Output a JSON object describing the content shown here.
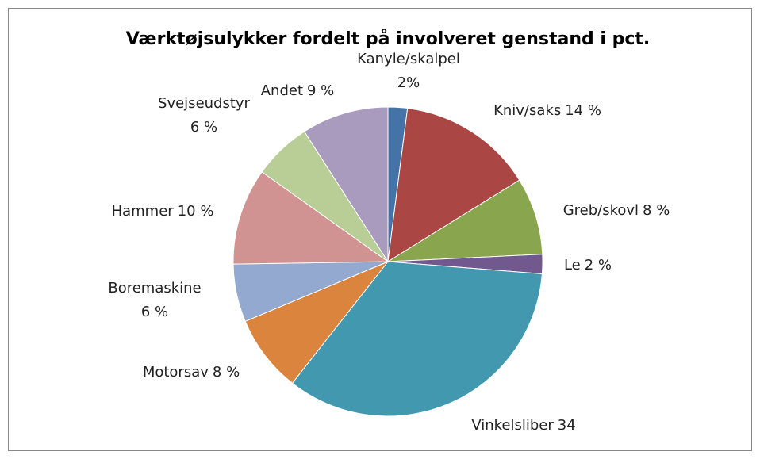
{
  "chart_data": {
    "type": "pie",
    "title": "Værktøjsulykker fordelt på involveret genstand i pct.",
    "categories": [
      "Kanyle/skalpel",
      "Kniv/saks",
      "Greb/skovl",
      "Le",
      "Vinkelsliber",
      "Motorsav",
      "Boremaskine",
      "Hammer",
      "Svejseudstyr",
      "Andet"
    ],
    "values": [
      2,
      14,
      8,
      2,
      34,
      8,
      6,
      10,
      6,
      9
    ],
    "value_labels": [
      "2%",
      "14 %",
      "8 %",
      "2 %",
      "34",
      "8 %",
      "6 %",
      "10 %",
      "6 %",
      "9 %"
    ],
    "colors": [
      "#4572A7",
      "#AA4643",
      "#89A54E",
      "#71588F",
      "#4198AF",
      "#DB843D",
      "#93A9CF",
      "#D19392",
      "#B9CD96",
      "#A99BBD"
    ]
  }
}
